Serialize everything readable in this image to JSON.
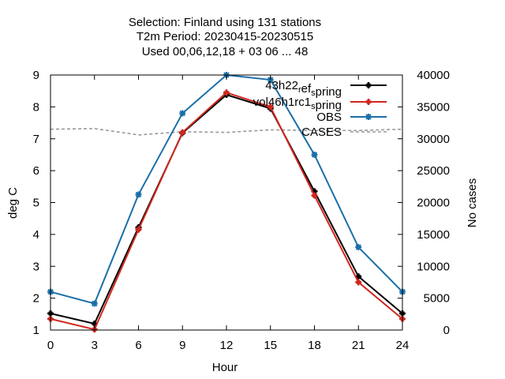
{
  "chart_data": {
    "type": "line",
    "title_lines": [
      "Selection: Finland using   131 stations",
      "T2m   Period: 20230415-20230515",
      "Used  00,06,12,18  + 03 06 ... 48"
    ],
    "xlabel": "Hour",
    "ylabel": "deg C",
    "y2label": "No cases",
    "xlim": [
      0,
      24
    ],
    "ylim": [
      1,
      9
    ],
    "y2lim": [
      0,
      40000
    ],
    "x_ticks": [
      0,
      3,
      6,
      9,
      12,
      15,
      18,
      21,
      24
    ],
    "y_ticks": [
      1,
      2,
      3,
      4,
      5,
      6,
      7,
      8,
      9
    ],
    "y2_ticks": [
      0,
      5000,
      10000,
      15000,
      20000,
      25000,
      30000,
      35000,
      40000
    ],
    "grid": false,
    "legend_position": "top-right",
    "x": [
      0,
      3,
      6,
      9,
      12,
      15,
      18,
      21,
      24
    ],
    "series": [
      {
        "name": "43h22_ref_spring",
        "legend_main": "43h22",
        "legend_sub1": "r",
        "legend_mid": "ef",
        "legend_sub2": "s",
        "legend_end": "pring",
        "color": "#000000",
        "axis": "y1",
        "marker": "plus",
        "values": [
          1.52,
          1.2,
          4.22,
          7.18,
          8.38,
          7.95,
          5.35,
          2.68,
          1.52
        ]
      },
      {
        "name": "vol46h1rc1_spring",
        "legend_main": "vol46h1rc1",
        "legend_sub1": "",
        "legend_mid": "",
        "legend_sub2": "s",
        "legend_end": "pring",
        "color": "#d0281f",
        "axis": "y1",
        "marker": "plus",
        "values": [
          1.35,
          1.02,
          4.15,
          7.2,
          8.45,
          8.0,
          5.22,
          2.5,
          1.35
        ]
      },
      {
        "name": "OBS",
        "legend_main": "OBS",
        "legend_sub1": "",
        "legend_mid": "",
        "legend_sub2": "",
        "legend_end": "",
        "color": "#1a6fa8",
        "axis": "y1",
        "marker": "star",
        "values": [
          2.2,
          1.83,
          5.25,
          7.8,
          9.0,
          8.85,
          6.5,
          3.6,
          2.2
        ]
      },
      {
        "name": "CASES",
        "legend_main": "CASES",
        "legend_sub1": "",
        "legend_mid": "",
        "legend_sub2": "",
        "legend_end": "",
        "color": "#999999",
        "axis": "y2",
        "marker": "none",
        "dashed": true,
        "values": [
          31500,
          31600,
          30600,
          31100,
          31000,
          31400,
          31300,
          31300,
          31500
        ]
      }
    ]
  }
}
